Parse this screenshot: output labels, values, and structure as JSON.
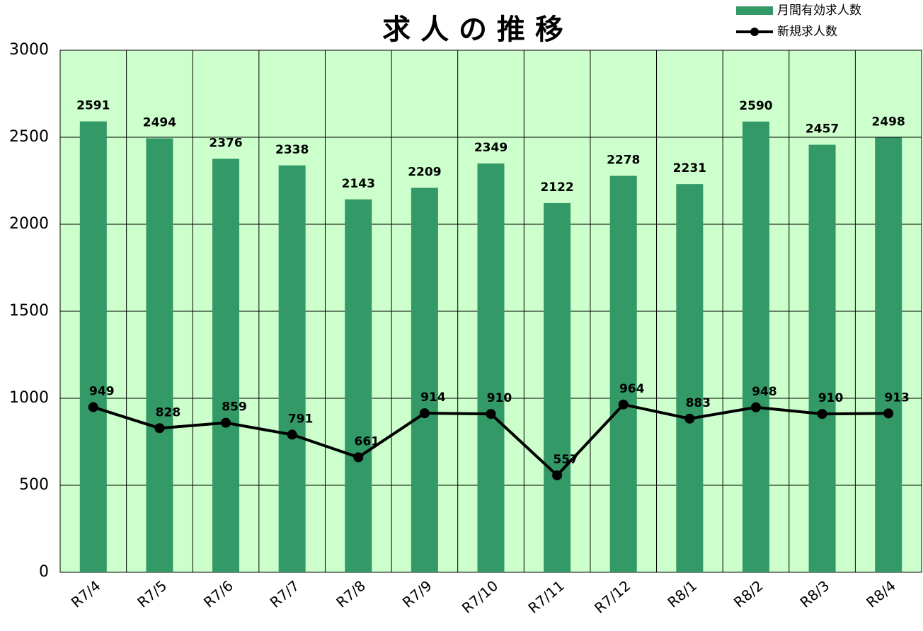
{
  "chart_data": {
    "type": "bar",
    "title": "求 人 の 推 移",
    "categories": [
      "R7/4",
      "R7/5",
      "R7/6",
      "R7/7",
      "R7/8",
      "R7/9",
      "R7/10",
      "R7/11",
      "R7/12",
      "R8/1",
      "R8/2",
      "R8/3",
      "R8/4"
    ],
    "series": [
      {
        "name": "月間有効求人数",
        "type": "bar",
        "color": "#339966",
        "values": [
          2591,
          2494,
          2376,
          2338,
          2143,
          2209,
          2349,
          2122,
          2278,
          2231,
          2590,
          2457,
          2498
        ]
      },
      {
        "name": "新規求人数",
        "type": "line",
        "color": "#000000",
        "values": [
          949,
          828,
          859,
          791,
          661,
          914,
          910,
          557,
          964,
          883,
          948,
          910,
          913
        ]
      }
    ],
    "ylim": [
      0,
      3000
    ],
    "yticks": [
      0,
      500,
      1000,
      1500,
      2000,
      2500,
      3000
    ],
    "grid": true,
    "legend": "top-right",
    "background": "#ccffcc"
  }
}
